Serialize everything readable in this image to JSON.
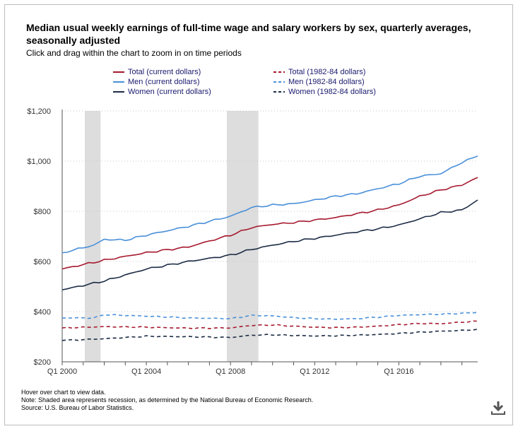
{
  "chart_data": {
    "type": "line",
    "title": "Median usual weekly earnings of full-time wage and salary workers by sex, quarterly averages, seasonally adjusted",
    "subtitle": "Click and drag within the chart to zoom in on time periods",
    "ylim": [
      200,
      1200
    ],
    "y_ticks": [
      200,
      400,
      600,
      800,
      1000,
      1200
    ],
    "y_tick_labels": [
      "$200",
      "$400",
      "$600",
      "$800",
      "$1,000",
      "$1,200"
    ],
    "x_range_quarters": [
      0,
      79
    ],
    "x_ticks": [
      {
        "q": 0,
        "label": "Q1 2000"
      },
      {
        "q": 16,
        "label": "Q1 2004"
      },
      {
        "q": 32,
        "label": "Q1 2008"
      },
      {
        "q": 48,
        "label": "Q1 2012"
      },
      {
        "q": 64,
        "label": "Q1 2016"
      }
    ],
    "recessions": [
      {
        "start_q": 4.3,
        "end_q": 7.3
      },
      {
        "start_q": 31.3,
        "end_q": 37.3
      }
    ],
    "grid": "horizontal dotted",
    "series": [
      {
        "name": "Total (current dollars)",
        "color": "#a6192e",
        "dash": false,
        "anchors": [
          [
            0,
            570
          ],
          [
            8,
            605
          ],
          [
            16,
            635
          ],
          [
            24,
            658
          ],
          [
            32,
            705
          ],
          [
            36,
            735
          ],
          [
            40,
            748
          ],
          [
            44,
            755
          ],
          [
            48,
            765
          ],
          [
            52,
            775
          ],
          [
            56,
            790
          ],
          [
            60,
            805
          ],
          [
            64,
            825
          ],
          [
            68,
            860
          ],
          [
            72,
            885
          ],
          [
            76,
            905
          ],
          [
            79,
            935
          ]
        ]
      },
      {
        "name": "Men (current dollars)",
        "color": "#4a90d9",
        "dash": false,
        "anchors": [
          [
            0,
            635
          ],
          [
            6,
            665
          ],
          [
            8,
            688
          ],
          [
            12,
            685
          ],
          [
            16,
            705
          ],
          [
            24,
            740
          ],
          [
            28,
            760
          ],
          [
            32,
            780
          ],
          [
            36,
            815
          ],
          [
            40,
            825
          ],
          [
            44,
            830
          ],
          [
            48,
            845
          ],
          [
            52,
            860
          ],
          [
            56,
            870
          ],
          [
            60,
            890
          ],
          [
            64,
            910
          ],
          [
            68,
            940
          ],
          [
            72,
            950
          ],
          [
            76,
            995
          ],
          [
            79,
            1020
          ]
        ]
      },
      {
        "name": "Women (current dollars)",
        "color": "#1c2c45",
        "dash": false,
        "anchors": [
          [
            0,
            487
          ],
          [
            8,
            522
          ],
          [
            16,
            570
          ],
          [
            24,
            600
          ],
          [
            32,
            625
          ],
          [
            36,
            648
          ],
          [
            40,
            665
          ],
          [
            44,
            680
          ],
          [
            48,
            692
          ],
          [
            52,
            705
          ],
          [
            56,
            718
          ],
          [
            60,
            730
          ],
          [
            64,
            745
          ],
          [
            68,
            770
          ],
          [
            72,
            795
          ],
          [
            76,
            805
          ],
          [
            79,
            845
          ]
        ]
      },
      {
        "name": "Total (1982-84 dollars)",
        "color": "#a6192e",
        "dash": true,
        "anchors": [
          [
            0,
            335
          ],
          [
            8,
            340
          ],
          [
            16,
            338
          ],
          [
            24,
            334
          ],
          [
            32,
            335
          ],
          [
            36,
            345
          ],
          [
            40,
            347
          ],
          [
            44,
            342
          ],
          [
            48,
            338
          ],
          [
            52,
            336
          ],
          [
            56,
            338
          ],
          [
            60,
            342
          ],
          [
            64,
            348
          ],
          [
            68,
            353
          ],
          [
            72,
            352
          ],
          [
            76,
            358
          ],
          [
            79,
            362
          ]
        ]
      },
      {
        "name": "Men (1982-84 dollars)",
        "color": "#4a90d9",
        "dash": true,
        "anchors": [
          [
            0,
            375
          ],
          [
            6,
            375
          ],
          [
            8,
            388
          ],
          [
            16,
            382
          ],
          [
            24,
            375
          ],
          [
            32,
            372
          ],
          [
            36,
            385
          ],
          [
            40,
            383
          ],
          [
            44,
            376
          ],
          [
            48,
            372
          ],
          [
            52,
            370
          ],
          [
            56,
            372
          ],
          [
            60,
            378
          ],
          [
            64,
            385
          ],
          [
            68,
            388
          ],
          [
            72,
            390
          ],
          [
            76,
            393
          ],
          [
            79,
            397
          ]
        ]
      },
      {
        "name": "Women (1982-84 dollars)",
        "color": "#1c2c45",
        "dash": true,
        "anchors": [
          [
            0,
            285
          ],
          [
            8,
            292
          ],
          [
            16,
            302
          ],
          [
            24,
            300
          ],
          [
            32,
            297
          ],
          [
            36,
            306
          ],
          [
            40,
            308
          ],
          [
            44,
            305
          ],
          [
            48,
            303
          ],
          [
            52,
            304
          ],
          [
            56,
            306
          ],
          [
            60,
            309
          ],
          [
            64,
            313
          ],
          [
            68,
            318
          ],
          [
            72,
            322
          ],
          [
            76,
            325
          ],
          [
            79,
            330
          ]
        ]
      }
    ]
  },
  "legend": {
    "left": [
      "Total (current dollars)",
      "Men (current dollars)",
      "Women (current dollars)"
    ],
    "right": [
      "Total (1982-84 dollars)",
      "Men (1982-84 dollars)",
      "Women (1982-84 dollars)"
    ]
  },
  "notes": {
    "hover": "Hover over chart to view data.",
    "note": "Note: Shaded area represents recession, as determined by the National Bureau of Economic Research.",
    "source": "Source: U.S. Bureau of Labor Statistics."
  },
  "colors": {
    "total": "#a6192e",
    "men": "#4a90d9",
    "women": "#1c2c45",
    "recession": "#dddddd",
    "grid": "#c8c8c8"
  },
  "icons": {
    "download": "download-icon"
  }
}
